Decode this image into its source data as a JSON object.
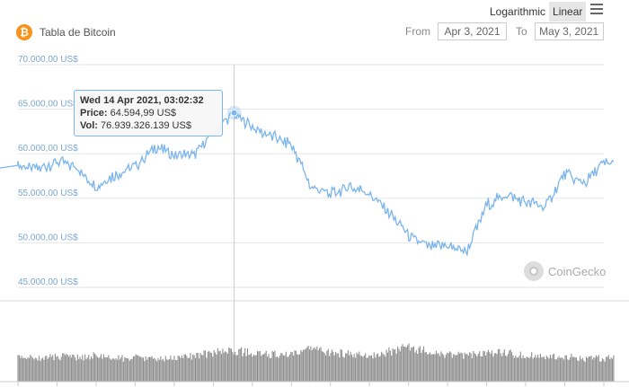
{
  "header": {
    "coin_symbol": "₿",
    "title": "Tabla de Bitcoin",
    "scale_options": [
      "Logarithmic",
      "Linear"
    ],
    "scale_selected": "Linear",
    "range": {
      "from_label": "From",
      "from": "Apr 3, 2021",
      "to_label": "To",
      "to": "May 3, 2021"
    }
  },
  "tooltip": {
    "date": "Wed 14 Apr 2021, 03:02:32",
    "price_label": "Price:",
    "price": "64.594,99 US$",
    "vol_label": "Vol:",
    "vol": "76.939.326.139 US$"
  },
  "watermark": "CoinGecko",
  "colors": {
    "line": "#7cb5ec",
    "volume": "#8c8c8c",
    "tooltip_border": "#7cb5ec",
    "axis_label": "#7ba7d1",
    "coin": "#f7931a"
  },
  "chart_data": {
    "type": "line",
    "title": "Tabla de Bitcoin",
    "x_range": [
      "2021-04-03",
      "2021-05-03"
    ],
    "ylim": [
      45000,
      70000
    ],
    "y_ticks": [
      45000,
      50000,
      55000,
      60000,
      65000,
      70000
    ],
    "y_tick_labels": [
      "45.000,00 US$",
      "50.000,00 US$",
      "55.000,00 US$",
      "60.000,00 US$",
      "65.000,00 US$",
      "70.000,00 US$"
    ],
    "grid": true,
    "highlight": {
      "x": "2021-04-14",
      "y": 64594.99
    },
    "series": [
      {
        "x": [
          "2021-04-03",
          "2021-04-04",
          "2021-04-05",
          "2021-04-06",
          "2021-04-07",
          "2021-04-08",
          "2021-04-09",
          "2021-04-10",
          "2021-04-11",
          "2021-04-12",
          "2021-04-13",
          "2021-04-14",
          "2021-04-15",
          "2021-04-16",
          "2021-04-17",
          "2021-04-18",
          "2021-04-19",
          "2021-04-20",
          "2021-04-21",
          "2021-04-22",
          "2021-04-23",
          "2021-04-24",
          "2021-04-25",
          "2021-04-26",
          "2021-04-27",
          "2021-04-28",
          "2021-04-29",
          "2021-04-30",
          "2021-05-01",
          "2021-05-02",
          "2021-05-03"
        ],
        "values": [
          58700,
          58200,
          59100,
          58500,
          56200,
          57700,
          58500,
          60800,
          59900,
          59800,
          62300,
          64594.99,
          63000,
          61900,
          61100,
          56300,
          55400,
          56400,
          55500,
          53400,
          50800,
          49500,
          49700,
          49100,
          54300,
          55300,
          54600,
          54000,
          57700,
          56700,
          58900
        ],
        "volume": [
          60,
          58,
          62,
          60,
          64,
          57,
          59,
          55,
          58,
          63,
          72,
          77,
          70,
          67,
          65,
          80,
          72,
          68,
          66,
          74,
          84,
          74,
          66,
          63,
          72,
          70,
          66,
          60,
          64,
          55,
          58
        ]
      }
    ]
  }
}
